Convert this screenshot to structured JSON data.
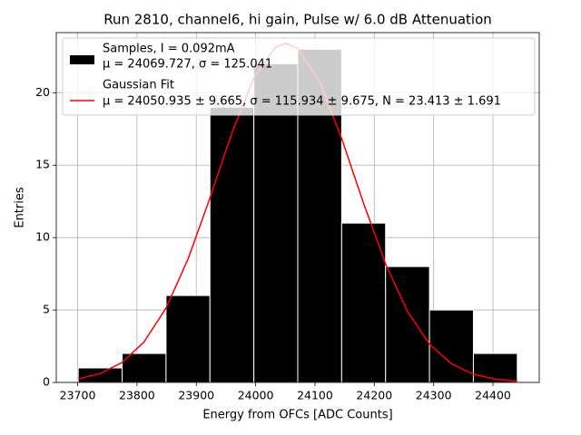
{
  "chart_data": {
    "type": "histogram",
    "title": "Run 2810, channel6, hi gain, Pulse w/ 6.0 dB Attenuation",
    "xlabel": "Energy from OFCs [ADC Counts]",
    "ylabel": "Entries",
    "name": "Samples, I = 0.092mA",
    "stats": "μ = 24069.727, σ = 125.041",
    "color": "#000000",
    "bins": [
      23701,
      23775,
      23849,
      23923,
      23997,
      24071,
      24145,
      24219,
      24293,
      24367,
      24441
    ],
    "values": [
      1,
      2,
      6,
      19,
      22,
      23,
      11,
      8,
      5,
      2
    ],
    "fit": {
      "type": "line",
      "name": "Gaussian Fit",
      "stats": "μ = 24050.935 ± 9.665, σ = 115.934 ± 9.675, N = 23.413 ± 1.691",
      "color": "#ff0000",
      "x": [
        23701,
        23738,
        23775,
        23812,
        23849,
        23886,
        23923,
        23960,
        23997,
        24034,
        24051,
        24071,
        24108,
        24145,
        24182,
        24219,
        24256,
        24293,
        24330,
        24367,
        24404,
        24441
      ],
      "values": [
        0.246,
        0.613,
        1.379,
        2.797,
        5.137,
        8.511,
        12.734,
        17.218,
        21.013,
        23.164,
        23.413,
        23.064,
        20.742,
        16.846,
        12.357,
        8.187,
        4.898,
        2.646,
        1.292,
        0.57,
        0.227,
        0.081
      ]
    },
    "xlim": [
      23664,
      24478
    ],
    "ylim": [
      0,
      24.15
    ],
    "xticks": [
      23700,
      23800,
      23900,
      24000,
      24100,
      24200,
      24300,
      24400
    ],
    "yticks": [
      0,
      5,
      10,
      15,
      20
    ],
    "grid": true,
    "legend": "upper left"
  }
}
